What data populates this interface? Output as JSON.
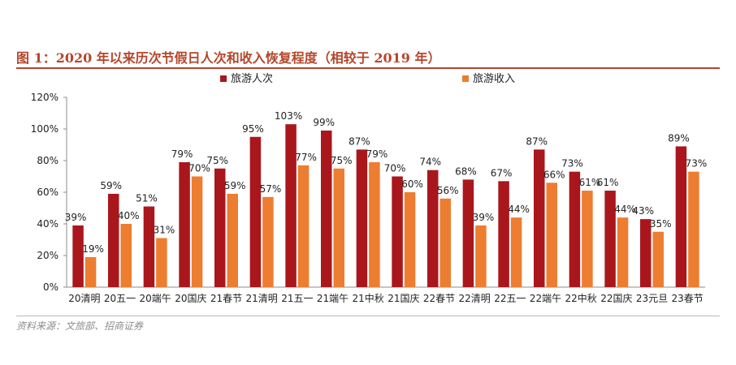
{
  "figure": {
    "title": "图 1：2020 年以来历次节假日人次和收入恢复程度（相较于 2019 年）",
    "source": "资料来源：文旅部、招商证券"
  },
  "chart_data": {
    "type": "bar",
    "categories": [
      "20清明",
      "20五一",
      "20端午",
      "20国庆",
      "21春节",
      "21清明",
      "21五一",
      "21端午",
      "21中秋",
      "21国庆",
      "22春节",
      "22清明",
      "22五一",
      "22端午",
      "22中秋",
      "22国庆",
      "23元旦",
      "23春节"
    ],
    "series": [
      {
        "name": "旅游人次",
        "color": "#a9171c",
        "values": [
          39,
          59,
          51,
          79,
          75,
          95,
          103,
          99,
          87,
          70,
          74,
          68,
          67,
          87,
          73,
          61,
          43,
          89
        ],
        "labels": [
          "39%",
          "59%",
          "51%",
          "79%",
          "75%",
          "95%",
          "103%",
          "99%",
          "87%",
          "70%",
          "74%",
          "68%",
          "67%",
          "87%",
          "73%",
          "61%",
          "43%",
          "89%"
        ]
      },
      {
        "name": "旅游收入",
        "color": "#ed7d31",
        "values": [
          19,
          40,
          31,
          70,
          59,
          57,
          77,
          75,
          79,
          60,
          56,
          39,
          44,
          66,
          61,
          44,
          35,
          73
        ],
        "labels": [
          "19%",
          "40%",
          "31%",
          "70%",
          "59%",
          "57%",
          "77%",
          "75%",
          "79%",
          "60%",
          "56%",
          "39%",
          "44%",
          "66%",
          "61%",
          "44%",
          "35%",
          "73%"
        ]
      }
    ],
    "y_ticks": [
      0,
      20,
      40,
      60,
      80,
      100,
      120
    ],
    "y_tick_labels": [
      "0%",
      "20%",
      "40%",
      "60%",
      "80%",
      "100%",
      "120%"
    ],
    "ylim": [
      0,
      120
    ],
    "xlabel": "",
    "ylabel": "",
    "grid": false,
    "legend_position": "top-left"
  }
}
